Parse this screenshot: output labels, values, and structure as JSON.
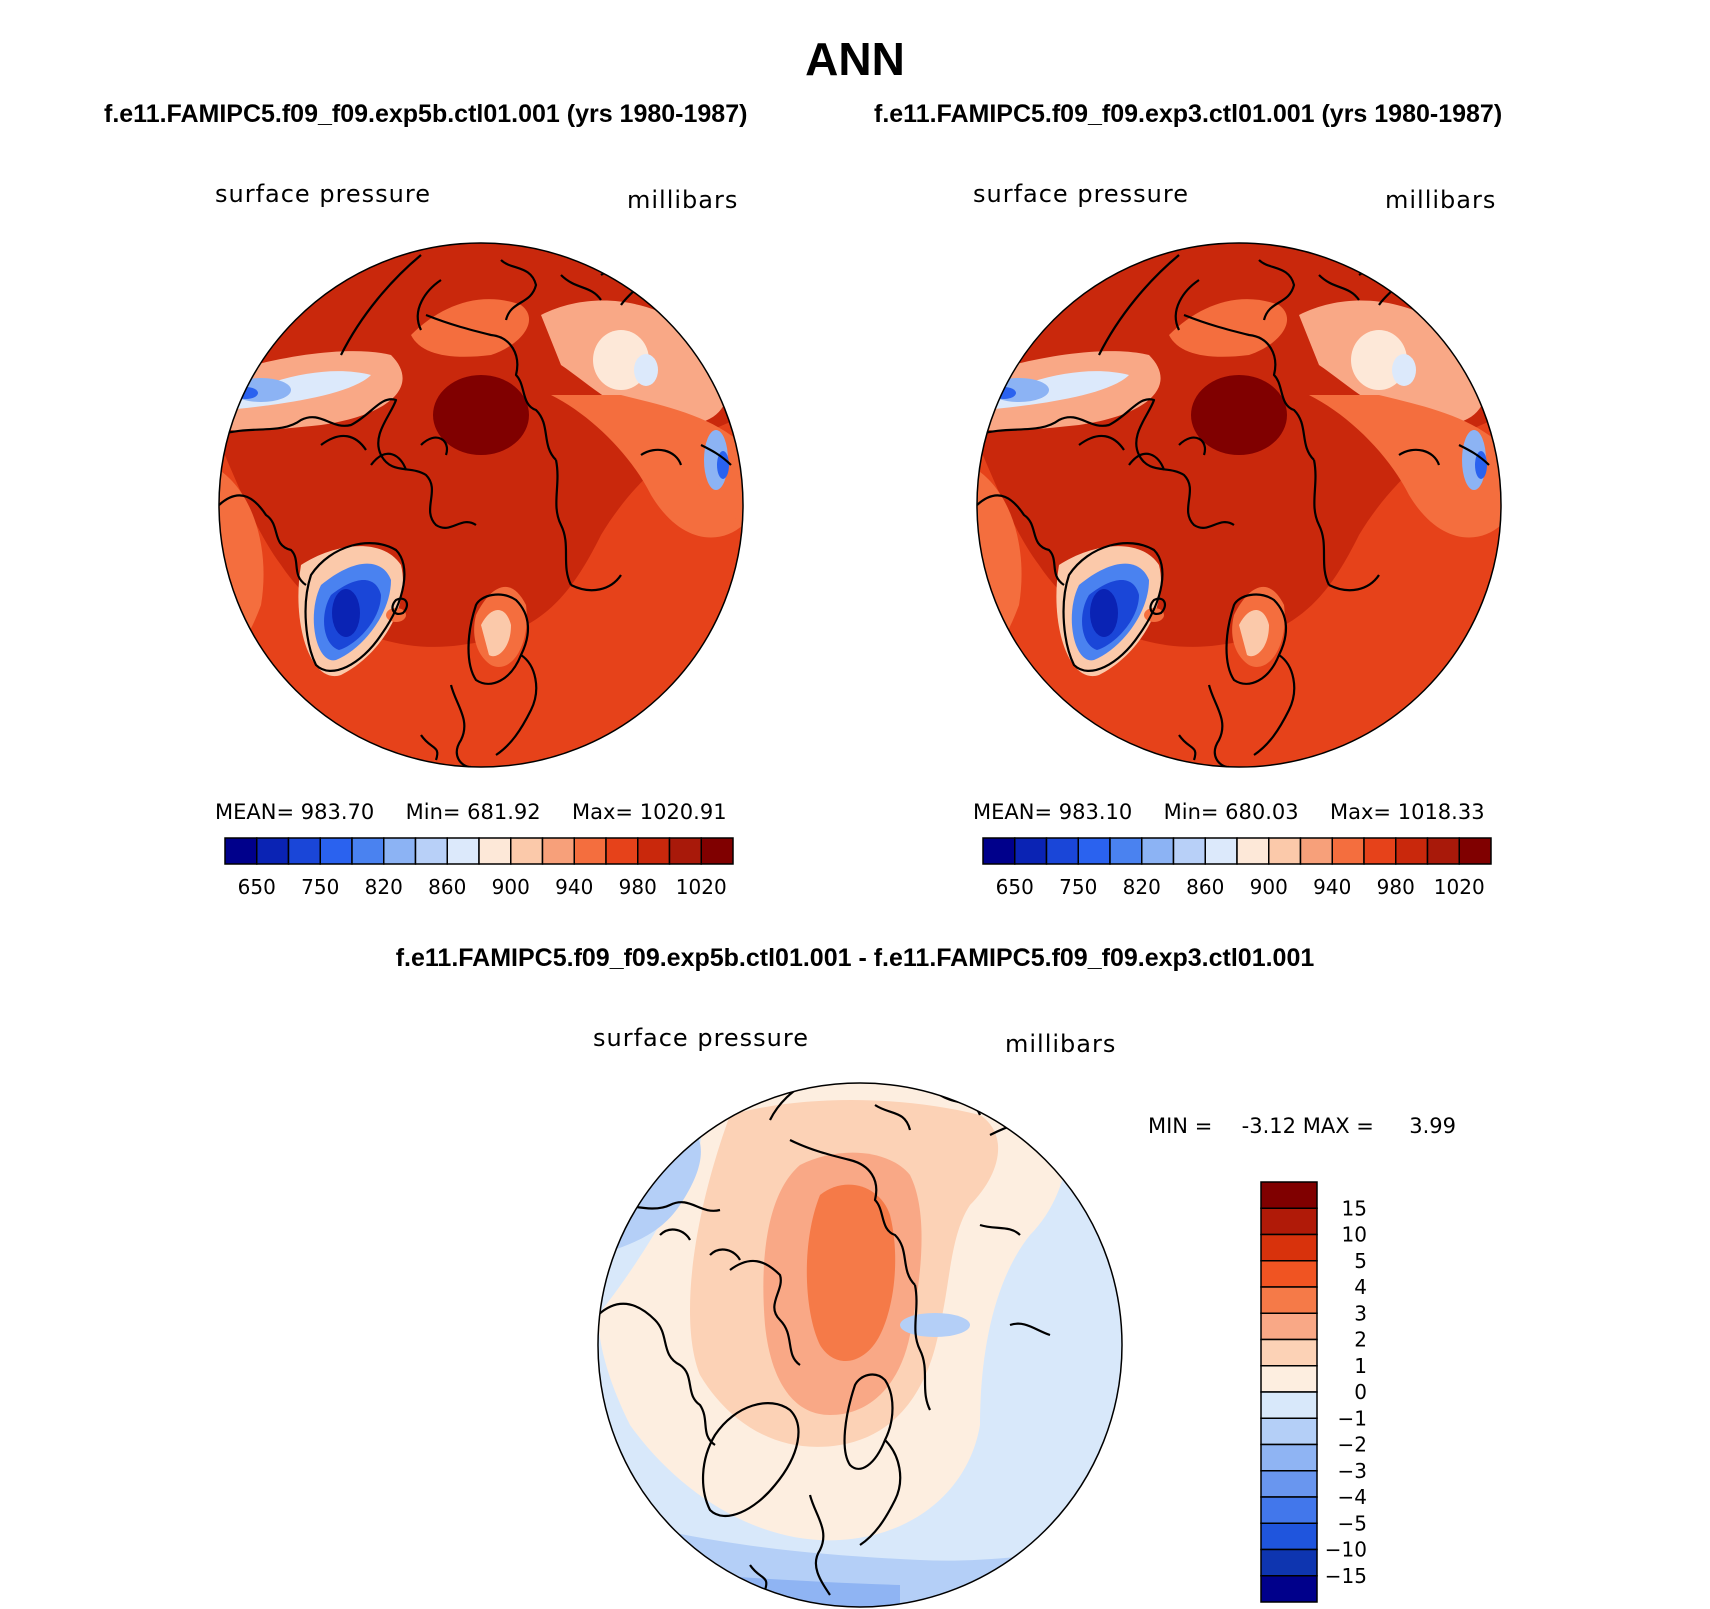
{
  "main_title": "ANN",
  "panel_titles": {
    "left": "f.e11.FAMIPC5.f09_f09.exp5b.ctl01.001 (yrs 1980-1987)",
    "right": "f.e11.FAMIPC5.f09_f09.exp3.ctl01.001 (yrs 1980-1987)",
    "diff": "f.e11.FAMIPC5.f09_f09.exp5b.ctl01.001 - f.e11.FAMIPC5.f09_f09.exp3.ctl01.001"
  },
  "panels": [
    {
      "variable": "surface pressure",
      "units": "millibars",
      "stats": {
        "mean_label": "MEAN=",
        "mean": "983.70",
        "min_label": "Min=",
        "min": "681.92",
        "max_label": "Max=",
        "max": "1020.91"
      }
    },
    {
      "variable": "surface pressure",
      "units": "millibars",
      "stats": {
        "mean_label": "MEAN=",
        "mean": "983.10",
        "min_label": "Min=",
        "min": "680.03",
        "max_label": "Max=",
        "max": "1018.33"
      }
    }
  ],
  "abs_colorbar": {
    "colors": [
      "#00008b",
      "#0a23b4",
      "#1a46d8",
      "#2a62ef",
      "#4a82f0",
      "#8cb3f4",
      "#b8d0f8",
      "#dce9fb",
      "#fde8d8",
      "#fbc9aa",
      "#f7a07a",
      "#f46e3e",
      "#e6421a",
      "#c9280c",
      "#a8190a",
      "#800000"
    ],
    "tick_labels": [
      "650",
      "750",
      "820",
      "860",
      "900",
      "940",
      "980",
      "1020"
    ]
  },
  "diff_panel": {
    "variable": "surface pressure",
    "units": "millibars",
    "min_label": "MIN =",
    "min": "-3.12",
    "max_label": "MAX =",
    "max": "3.99"
  },
  "diff_colorbar": {
    "colors_top_to_bottom": [
      "#800000",
      "#b01a08",
      "#d8320c",
      "#f05422",
      "#f57a48",
      "#f9a886",
      "#fcd2b6",
      "#fdeee0",
      "#d8e8fa",
      "#b4cff7",
      "#8fb4f3",
      "#6996ef",
      "#4277eb",
      "#1f55dd",
      "#0e35b0",
      "#00008b"
    ],
    "tick_labels": [
      "15",
      "10",
      "5",
      "4",
      "3",
      "2",
      "1",
      "0",
      "−1",
      "−2",
      "−3",
      "−4",
      "−5",
      "−10",
      "−15"
    ]
  }
}
